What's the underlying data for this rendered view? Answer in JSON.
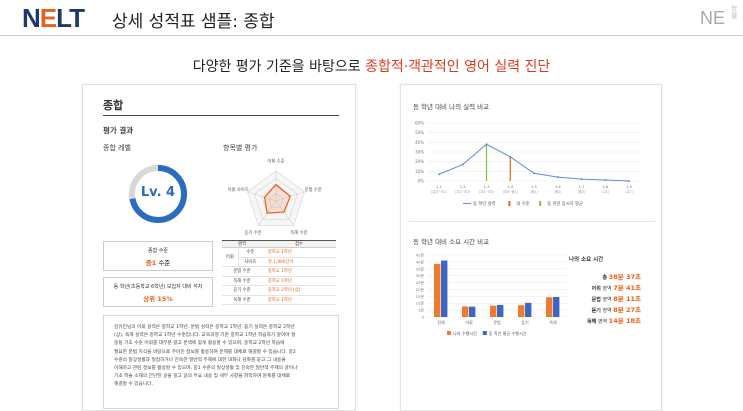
{
  "header": {
    "logo_main": "NELT",
    "page_title": "상세 성적표 샘플: 종합",
    "corner_mark": "NE",
    "corner_vertical": "능률"
  },
  "tagline": {
    "prefix": "다양한 평가 기준을 바탕으로 ",
    "highlight": "종합적·객관적인 영어 실력 진단"
  },
  "colors": {
    "brand_navy": "#1b3a6b",
    "accent_orange": "#e8601c",
    "accent_red": "#e03a1e",
    "blue": "#2a6cc0",
    "green": "#7cc04b"
  },
  "left": {
    "title": "종합",
    "section": "평가 결과",
    "level_label": "종합 레벨",
    "level_value": "Lv. 4",
    "level_fraction": 0.72,
    "radar_label": "항목별 평가",
    "radar_axes": [
      "어휘 수준",
      "문법 수준",
      "독해 수준",
      "듣기 수준",
      "어휘 사이즈"
    ],
    "radar_values": [
      0.55,
      0.5,
      0.45,
      0.5,
      0.4
    ],
    "box1": {
      "label": "종합 수준",
      "value": "중1",
      "suffix": "수준"
    },
    "box2": {
      "label": "동 학년(초등학교 6학년) 모집자 대비 석차",
      "value": "상위 15%"
    },
    "table": {
      "headers": [
        "영역",
        "점수"
      ],
      "rows": [
        {
          "group": "어휘",
          "item": "수준",
          "value": "중학교 1학년"
        },
        {
          "group": "",
          "item": "사이즈",
          "value": "약 1,900단어"
        },
        {
          "group": "문법 수준",
          "item": "",
          "value": "중학교 1학년"
        },
        {
          "group": "독해 수준",
          "item": "",
          "value": "중학교 1학년"
        },
        {
          "group": "듣기 수준",
          "item": "",
          "value": "중학교 2학년 (상)"
        },
        {
          "group": "독해 수준",
          "item": "",
          "value": "중학교 1학년"
        }
      ]
    },
    "narrative": [
      "김유민님의 어휘 실력은 중학교 1학년, 문법 실력은 중학교 1학년, 듣기 실력은 중학교 2학년",
      "(상), 독해 실력은 중학교 1학년 수준입니다. 교육과정 기준 중학교 1학년 학습자가 알아야 할",
      "중등 기초 수준 어휘를 대부분 알고 문맥에 맞게 활용할 수 있으며, 중학교 2학년 학습에",
      "필요한 문법 지식을 바탕으로 주어진 정보를 활용하여 문제를 대체로 해결할 수 있습니다. 중2",
      "수준의 일상생활과 밀접하거나 친숙한 일반적 주제에 대한 대화나 담화를 듣고 그 내용을",
      "이해하고 관련 정보를 활용할 수 있으며, 중1 수준의 일상생활 및 친숙한 일반적 주제의 글이나",
      "기초 학술 소재의 간단한 글을 읽고 글의 주요 내용 및 세부 사항을 파악하여 문제를 대체로",
      "해결할 수 있습니다."
    ]
  },
  "right": {
    "line_title": "동 학년 대비 나의 실력 비교",
    "bar_title": "동 학년 대비 소요 시간 비교",
    "time_title": "나의 소요 시간",
    "time_rows": [
      {
        "label": "총",
        "value": "38분 37초",
        "suffix": ""
      },
      {
        "label": "어휘",
        "value": "7분 41초",
        "suffix": "영역"
      },
      {
        "label": "문법",
        "value": "8분 11초",
        "suffix": "영역"
      },
      {
        "label": "듣기",
        "value": "8분 27초",
        "suffix": "영역"
      },
      {
        "label": "독해",
        "value": "14분 18초",
        "suffix": "영역"
      }
    ]
  },
  "chart_data": [
    {
      "type": "line",
      "title": "동 학년 대비 나의 실력 비교",
      "categories": [
        "1-1\n(유치~초1)",
        "1-2\n(초2~초3)",
        "1-3\n(초4~초5)",
        "1-4\n(초6~중1)",
        "1-5\n(중1)",
        "1-6\n(중2)",
        "1-7\n(중3)",
        "1-8\n(고1)",
        "1-9\n(고2)"
      ],
      "y_ticks": [
        "0%",
        "10%",
        "20%",
        "30%",
        "40%",
        "50%",
        "60%"
      ],
      "ylim": [
        0,
        60
      ],
      "series": [
        {
          "name": "동 학년 실력",
          "color": "#5b8fd6",
          "values": [
            7,
            17,
            38,
            25,
            8,
            4,
            2,
            1,
            0
          ]
        }
      ],
      "markers": [
        {
          "name": "내 수준",
          "color": "#e8601c",
          "category_index": 3
        },
        {
          "name": "동 학년 응시자 평균",
          "color": "#7cc04b",
          "category_index": 2
        }
      ],
      "legend": "bottom",
      "grid": true
    },
    {
      "type": "bar",
      "title": "동 학년 대비 소요 시간 비교",
      "categories": [
        "전체",
        "어휘",
        "문법",
        "듣기",
        "독해"
      ],
      "y_ticks": [
        "0",
        "5분",
        "10분",
        "15분",
        "20분",
        "25분",
        "30분",
        "35분",
        "40분",
        "45분"
      ],
      "ylim": [
        0,
        45
      ],
      "series": [
        {
          "name": "나의 수행시간",
          "color": "#f07a2b",
          "values": [
            38.6,
            7.7,
            8.2,
            8.5,
            14.3
          ]
        },
        {
          "name": "동 학년 평균 수행시간",
          "color": "#3d67c2",
          "values": [
            41,
            7.5,
            8.8,
            10.3,
            14.5
          ]
        }
      ],
      "legend": "bottom",
      "grid": true
    }
  ]
}
